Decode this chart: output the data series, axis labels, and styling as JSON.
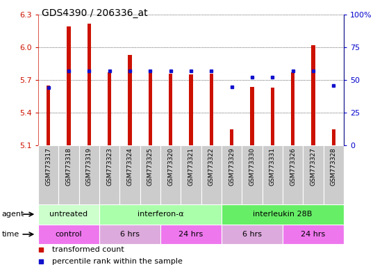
{
  "title": "GDS4390 / 206336_at",
  "samples": [
    "GSM773317",
    "GSM773318",
    "GSM773319",
    "GSM773323",
    "GSM773324",
    "GSM773325",
    "GSM773320",
    "GSM773321",
    "GSM773322",
    "GSM773329",
    "GSM773330",
    "GSM773331",
    "GSM773326",
    "GSM773327",
    "GSM773328"
  ],
  "transformed_count": [
    5.65,
    6.19,
    6.22,
    5.77,
    5.93,
    5.77,
    5.76,
    5.75,
    5.76,
    5.25,
    5.64,
    5.63,
    5.77,
    6.02,
    5.25
  ],
  "percentile_rank": [
    44,
    57,
    57,
    57,
    57,
    57,
    57,
    57,
    57,
    45,
    52,
    52,
    57,
    57,
    46
  ],
  "ylim_left": [
    5.1,
    6.3
  ],
  "ylim_right": [
    0,
    100
  ],
  "yticks_left": [
    5.1,
    5.4,
    5.7,
    6.0,
    6.3
  ],
  "yticks_right": [
    0,
    25,
    50,
    75,
    100
  ],
  "ytick_labels_right": [
    "0",
    "25",
    "50",
    "75",
    "100%"
  ],
  "bar_color": "#cc1100",
  "dot_color": "#1111cc",
  "bar_bottom": 5.1,
  "agent_groups": [
    {
      "label": "untreated",
      "start": 0,
      "end": 3,
      "color": "#ccffcc"
    },
    {
      "label": "interferon-α",
      "start": 3,
      "end": 9,
      "color": "#aaffaa"
    },
    {
      "label": "interleukin 28B",
      "start": 9,
      "end": 15,
      "color": "#66ee66"
    }
  ],
  "time_groups": [
    {
      "label": "control",
      "start": 0,
      "end": 3,
      "color": "#ee77ee"
    },
    {
      "label": "6 hrs",
      "start": 3,
      "end": 6,
      "color": "#ddaadd"
    },
    {
      "label": "24 hrs",
      "start": 6,
      "end": 9,
      "color": "#ee77ee"
    },
    {
      "label": "6 hrs",
      "start": 9,
      "end": 12,
      "color": "#ddaadd"
    },
    {
      "label": "24 hrs",
      "start": 12,
      "end": 15,
      "color": "#ee77ee"
    }
  ],
  "grid_color": "#000000",
  "tick_label_color_left": "#cc1100",
  "tick_label_color_right": "#0000cc",
  "bar_width": 0.18,
  "legend_items": [
    {
      "color": "#cc1100",
      "label": "transformed count"
    },
    {
      "color": "#1111cc",
      "label": "percentile rank within the sample"
    }
  ],
  "sample_bg_color": "#cccccc",
  "sample_bg_edge": "#ffffff"
}
